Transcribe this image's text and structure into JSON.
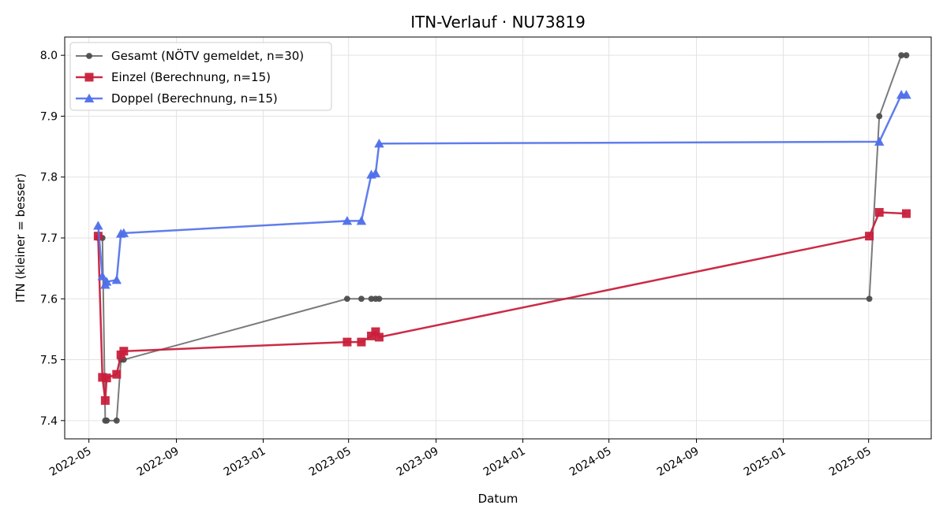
{
  "chart_data": {
    "type": "line",
    "title": "ITN-Verlauf · NU73819",
    "xlabel": "Datum",
    "ylabel": "ITN  (kleiner = besser)",
    "x_ticks": [
      "2022-05",
      "2022-09",
      "2023-01",
      "2023-05",
      "2023-09",
      "2024-01",
      "2024-05",
      "2024-09",
      "2025-01",
      "2025-05"
    ],
    "y_ticks": [
      "7.4",
      "7.5",
      "7.6",
      "7.7",
      "7.8",
      "7.9",
      "8.0"
    ],
    "xlim": [
      "2022-03-28",
      "2025-07-28"
    ],
    "ylim": [
      7.37,
      8.03
    ],
    "grid": true,
    "legend_position": "top-left",
    "series": [
      {
        "name": "Gesamt (NÖTV gemeldet, n=30)",
        "color": "#4d4d4d",
        "marker": "circle",
        "points": [
          [
            "2022-05-14",
            7.7
          ],
          [
            "2022-05-20",
            7.7
          ],
          [
            "2022-05-24",
            7.4
          ],
          [
            "2022-05-26",
            7.4
          ],
          [
            "2022-06-09",
            7.4
          ],
          [
            "2022-06-15",
            7.5
          ],
          [
            "2022-06-19",
            7.5
          ],
          [
            "2023-04-29",
            7.6
          ],
          [
            "2023-05-19",
            7.6
          ],
          [
            "2023-06-02",
            7.6
          ],
          [
            "2023-06-08",
            7.6
          ],
          [
            "2023-06-13",
            7.6
          ],
          [
            "2025-05-02",
            7.6
          ],
          [
            "2025-05-16",
            7.9
          ],
          [
            "2025-06-16",
            8.0
          ],
          [
            "2025-06-23",
            8.0
          ]
        ]
      },
      {
        "name": "Einzel (Berechnung, n=15)",
        "color": "#c8203c",
        "marker": "square",
        "points": [
          [
            "2022-05-14",
            7.703
          ],
          [
            "2022-05-20",
            7.471
          ],
          [
            "2022-05-24",
            7.433
          ],
          [
            "2022-05-26",
            7.47
          ],
          [
            "2022-06-09",
            7.476
          ],
          [
            "2022-06-15",
            7.508
          ],
          [
            "2022-06-19",
            7.514
          ],
          [
            "2023-04-29",
            7.529
          ],
          [
            "2023-05-19",
            7.529
          ],
          [
            "2023-06-02",
            7.539
          ],
          [
            "2023-06-08",
            7.546
          ],
          [
            "2023-06-13",
            7.537
          ],
          [
            "2025-05-02",
            7.703
          ],
          [
            "2025-05-16",
            7.742
          ],
          [
            "2025-06-23",
            7.74
          ]
        ]
      },
      {
        "name": "Doppel (Berechnung, n=15)",
        "color": "#4f6fea",
        "marker": "triangle",
        "points": [
          [
            "2022-05-14",
            7.72
          ],
          [
            "2022-05-20",
            7.637
          ],
          [
            "2022-05-24",
            7.623
          ],
          [
            "2022-05-26",
            7.628
          ],
          [
            "2022-06-09",
            7.631
          ],
          [
            "2022-06-15",
            7.707
          ],
          [
            "2022-06-19",
            7.708
          ],
          [
            "2023-04-29",
            7.728
          ],
          [
            "2023-05-19",
            7.728
          ],
          [
            "2023-06-02",
            7.804
          ],
          [
            "2023-06-08",
            7.806
          ],
          [
            "2023-06-13",
            7.855
          ],
          [
            "2025-05-16",
            7.858
          ],
          [
            "2025-06-16",
            7.935
          ],
          [
            "2025-06-23",
            7.935
          ]
        ]
      }
    ]
  }
}
